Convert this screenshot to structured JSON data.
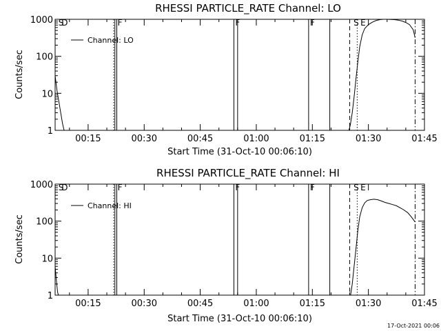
{
  "footer_timestamp": "17-Oct-2021 00:06",
  "chart_data": [
    {
      "type": "line",
      "title": "RHESSI PARTICLE_RATE Channel: LO",
      "xlabel": "Start Time (31-Oct-10 00:06:10)",
      "ylabel": "Counts/sec",
      "legend": "Channel: LO",
      "legend_position": "top-left",
      "yscale": "log",
      "xlim": [
        "00:06:10",
        "01:45:00"
      ],
      "ylim": [
        1,
        1000
      ],
      "x_ticks": [
        "00:15",
        "00:30",
        "00:45",
        "01:00",
        "01:15",
        "01:30",
        "01:45"
      ],
      "y_ticks": [
        "1",
        "10",
        "100",
        "1000"
      ],
      "grid": false,
      "flag_markers": [
        {
          "time": "00:06:40",
          "label": "S"
        },
        {
          "time": "00:07:30",
          "label": "D"
        },
        {
          "time": "00:22:30",
          "label": "F"
        },
        {
          "time": "00:54:00",
          "label": "F"
        },
        {
          "time": "01:14:00",
          "label": "F"
        },
        {
          "time": "01:25:40",
          "label": "S"
        },
        {
          "time": "01:27:30",
          "label": "E"
        }
      ],
      "vertical_lines": [
        {
          "time": "00:21:50",
          "style": "dotted"
        },
        {
          "time": "00:22:10",
          "style": "solid"
        },
        {
          "time": "00:22:40",
          "style": "solid"
        },
        {
          "time": "00:54:00",
          "style": "solid"
        },
        {
          "time": "00:55:00",
          "style": "solid"
        },
        {
          "time": "01:14:00",
          "style": "solid"
        },
        {
          "time": "01:19:40",
          "style": "solid"
        },
        {
          "time": "01:25:00",
          "style": "dashed"
        },
        {
          "time": "01:27:00",
          "style": "dotted"
        },
        {
          "time": "01:42:30",
          "style": "dash-dot"
        }
      ],
      "series": [
        {
          "name": "Channel: LO",
          "x": [
            "00:06:10",
            "00:06:40",
            "00:07:10",
            "00:07:40",
            "00:08:10",
            "00:08:40",
            "01:24:40",
            "01:25:10",
            "01:25:40",
            "01:26:10",
            "01:26:40",
            "01:27:10",
            "01:27:40",
            "01:28:20",
            "01:29:00",
            "01:30:00",
            "01:31:00",
            "01:32:00",
            "01:33:00",
            "01:34:00",
            "01:35:00",
            "01:36:00",
            "01:37:00",
            "01:38:00",
            "01:39:00",
            "01:40:00",
            "01:41:00",
            "01:42:00",
            "01:42:30"
          ],
          "y": [
            30,
            12,
            6,
            3,
            1.5,
            0.9,
            0.9,
            1.4,
            3,
            8,
            25,
            70,
            180,
            380,
            560,
            720,
            830,
            920,
            980,
            1000,
            1000,
            990,
            980,
            950,
            900,
            820,
            720,
            520,
            320
          ]
        }
      ]
    },
    {
      "type": "line",
      "title": "RHESSI PARTICLE_RATE Channel: HI",
      "xlabel": "Start Time (31-Oct-10 00:06:10)",
      "ylabel": "Counts/sec",
      "legend": "Channel: HI",
      "legend_position": "top-left",
      "yscale": "log",
      "xlim": [
        "00:06:10",
        "01:45:00"
      ],
      "ylim": [
        1,
        1000
      ],
      "x_ticks": [
        "00:15",
        "00:30",
        "00:45",
        "01:00",
        "01:15",
        "01:30",
        "01:45"
      ],
      "y_ticks": [
        "1",
        "10",
        "100",
        "1000"
      ],
      "grid": false,
      "flag_markers": [
        {
          "time": "00:06:40",
          "label": "S"
        },
        {
          "time": "00:07:30",
          "label": "D"
        },
        {
          "time": "00:22:30",
          "label": "F"
        },
        {
          "time": "00:54:00",
          "label": "F"
        },
        {
          "time": "01:14:00",
          "label": "F"
        },
        {
          "time": "01:25:40",
          "label": "S"
        },
        {
          "time": "01:27:30",
          "label": "E"
        }
      ],
      "vertical_lines": [
        {
          "time": "00:21:50",
          "style": "dotted"
        },
        {
          "time": "00:22:10",
          "style": "solid"
        },
        {
          "time": "00:22:40",
          "style": "solid"
        },
        {
          "time": "00:54:00",
          "style": "solid"
        },
        {
          "time": "00:55:00",
          "style": "solid"
        },
        {
          "time": "01:14:00",
          "style": "solid"
        },
        {
          "time": "01:19:40",
          "style": "solid"
        },
        {
          "time": "01:25:00",
          "style": "dashed"
        },
        {
          "time": "01:27:00",
          "style": "dotted"
        },
        {
          "time": "01:42:30",
          "style": "dash-dot"
        }
      ],
      "series": [
        {
          "name": "Channel: HI",
          "x": [
            "00:06:10",
            "00:06:30",
            "00:06:50",
            "00:07:10",
            "01:25:10",
            "01:25:40",
            "01:26:10",
            "01:26:40",
            "01:27:10",
            "01:27:40",
            "01:28:20",
            "01:29:00",
            "01:29:40",
            "01:30:30",
            "01:31:30",
            "01:32:30",
            "01:33:30",
            "01:34:30",
            "01:35:30",
            "01:36:30",
            "01:37:30",
            "01:38:30",
            "01:39:30",
            "01:40:30",
            "01:41:30",
            "01:42:30"
          ],
          "y": [
            6,
            2.5,
            1.2,
            0.9,
            0.9,
            2,
            6,
            18,
            55,
            130,
            230,
            310,
            360,
            380,
            390,
            380,
            350,
            320,
            300,
            280,
            260,
            230,
            200,
            170,
            130,
            95
          ]
        }
      ]
    }
  ]
}
